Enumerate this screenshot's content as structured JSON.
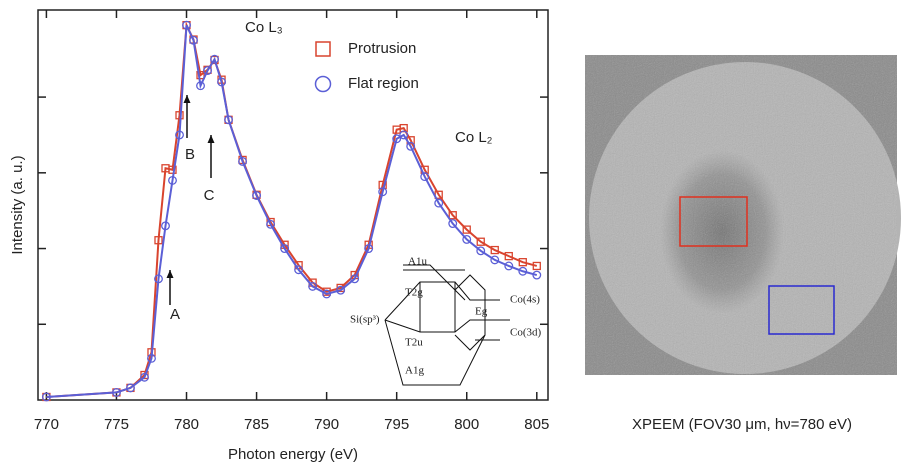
{
  "chart_data": {
    "type": "line",
    "x_label": "Photon energy (eV)",
    "y_label": "Intensity (a. u.)",
    "x": [
      770,
      775,
      776,
      777,
      777.5,
      778,
      778.5,
      779,
      779.5,
      780,
      780.5,
      781,
      781.5,
      782,
      782.5,
      783,
      784,
      785,
      786,
      787,
      788,
      789,
      790,
      791,
      792,
      793,
      794,
      795,
      795.5,
      796,
      797,
      798,
      799,
      800,
      801,
      802,
      803,
      804,
      805
    ],
    "series": [
      {
        "name": "Protrusion",
        "color": "#d9442e",
        "marker": "square",
        "values": [
          0.04,
          0.1,
          0.16,
          0.33,
          0.63,
          2.11,
          3.06,
          3.04,
          3.76,
          4.95,
          4.76,
          4.29,
          4.36,
          4.49,
          4.23,
          3.7,
          3.17,
          2.71,
          2.35,
          2.05,
          1.78,
          1.55,
          1.43,
          1.48,
          1.65,
          2.05,
          2.84,
          3.57,
          3.59,
          3.43,
          3.04,
          2.71,
          2.44,
          2.25,
          2.09,
          1.98,
          1.9,
          1.82,
          1.77
        ]
      },
      {
        "name": "Flat region",
        "color": "#5b5fd6",
        "marker": "circle",
        "values": [
          0.04,
          0.1,
          0.16,
          0.3,
          0.55,
          1.6,
          2.3,
          2.9,
          3.5,
          4.95,
          4.75,
          4.15,
          4.35,
          4.5,
          4.2,
          3.7,
          3.15,
          2.7,
          2.32,
          2.0,
          1.72,
          1.5,
          1.4,
          1.45,
          1.6,
          2.0,
          2.75,
          3.45,
          3.5,
          3.35,
          2.95,
          2.6,
          2.33,
          2.12,
          1.97,
          1.85,
          1.77,
          1.7,
          1.65
        ]
      }
    ],
    "xlim": [
      769.4,
      805.8
    ],
    "xticks": [
      770,
      775,
      780,
      785,
      790,
      795,
      800,
      805
    ],
    "ylim": [
      0,
      5.15
    ],
    "yticks": [
      1,
      2,
      3,
      4
    ],
    "annotations": [
      "A",
      "B",
      "C",
      "Co L₃",
      "Co L₂"
    ],
    "inset": {
      "labels": [
        "A1u",
        "T2g",
        "Si(sp³)",
        "Eg",
        "Co(4s)",
        "Co(3d)",
        "T2u",
        "A1g"
      ]
    }
  },
  "image": {
    "caption": "XPEEM (FOV30 μm, hν=780 eV)"
  }
}
